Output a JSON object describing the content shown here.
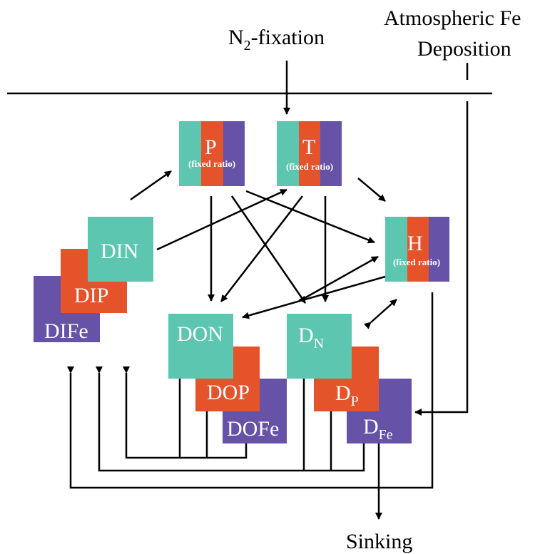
{
  "colors": {
    "nitrogen": "#5cc6b0",
    "phosphorus": "#e5532a",
    "iron": "#6652a6",
    "line": "#000000"
  },
  "labels": {
    "n2_fixation": "N",
    "n2_fixation_sub": "2",
    "n2_fixation_rest": "-fixation",
    "atmospheric_line1": "Atmospheric Fe",
    "atmospheric_line2": "Deposition",
    "sinking": "Sinking"
  },
  "organisms": {
    "p": {
      "letter": "P",
      "note": "(fixed ratio)"
    },
    "t": {
      "letter": "T",
      "note": "(fixed ratio)"
    },
    "h": {
      "letter": "H",
      "note": "(fixed ratio)"
    }
  },
  "pools": {
    "din": "DIN",
    "dip": "DIP",
    "dife": "DIFe",
    "don": "DON",
    "dop": "DOP",
    "dofe": "DOFe",
    "dn_main": "D",
    "dn_sub": "N",
    "dp_main": "D",
    "dp_sub": "P",
    "dfe_main": "D",
    "dfe_sub": "Fe"
  }
}
